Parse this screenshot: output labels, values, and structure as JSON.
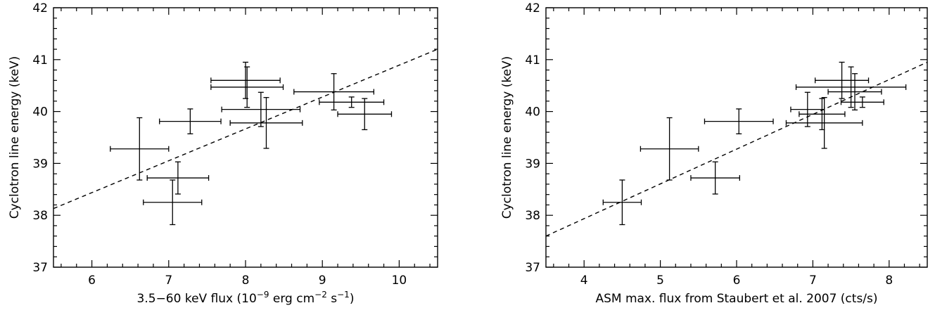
{
  "chart_data": [
    {
      "type": "scatter",
      "xlabel": "3.5−60 keV flux (10",
      "xlabel_exp1": "−9",
      "xlabel_mid": " erg cm",
      "xlabel_exp2": "−2",
      "xlabel_mid2": " s",
      "xlabel_exp3": "−1",
      "xlabel_end": ")",
      "ylabel": "Cyclotron line energy (keV)",
      "xlim": [
        5.5,
        10.5
      ],
      "ylim": [
        37,
        42
      ],
      "xticks": [
        6,
        7,
        8,
        9,
        10
      ],
      "xtick_labels": [
        "6",
        "7",
        "8",
        "9",
        "10"
      ],
      "yticks": [
        37,
        38,
        39,
        40,
        41,
        42
      ],
      "ytick_labels": [
        "37",
        "38",
        "39",
        "40",
        "41",
        "42"
      ],
      "points": [
        {
          "x": 6.62,
          "y": 39.28,
          "xerr": 0.38,
          "yerr": 0.6
        },
        {
          "x": 7.05,
          "y": 38.25,
          "xerr": 0.38,
          "yerr": 0.43
        },
        {
          "x": 7.12,
          "y": 38.72,
          "xerr": 0.4,
          "yerr": 0.31
        },
        {
          "x": 7.28,
          "y": 39.81,
          "xerr": 0.4,
          "yerr": 0.24
        },
        {
          "x": 8.0,
          "y": 40.6,
          "xerr": 0.45,
          "yerr": 0.35
        },
        {
          "x": 8.02,
          "y": 40.47,
          "xerr": 0.47,
          "yerr": 0.39
        },
        {
          "x": 8.2,
          "y": 40.04,
          "xerr": 0.51,
          "yerr": 0.33
        },
        {
          "x": 8.27,
          "y": 39.78,
          "xerr": 0.47,
          "yerr": 0.49
        },
        {
          "x": 9.15,
          "y": 40.38,
          "xerr": 0.52,
          "yerr": 0.35
        },
        {
          "x": 9.38,
          "y": 40.18,
          "xerr": 0.42,
          "yerr": 0.1
        },
        {
          "x": 9.55,
          "y": 39.95,
          "xerr": 0.35,
          "yerr": 0.3
        }
      ],
      "fit_line": {
        "x": [
          5.5,
          10.5
        ],
        "y": [
          38.13,
          41.2
        ]
      }
    },
    {
      "type": "scatter",
      "xlabel": "ASM max. flux from Staubert et al. 2007 (cts/s)",
      "ylabel": "Cyclotron line energy (keV)",
      "xlim": [
        3.5,
        8.5
      ],
      "ylim": [
        37,
        42
      ],
      "xticks": [
        4,
        5,
        6,
        7,
        8
      ],
      "xtick_labels": [
        "4",
        "5",
        "6",
        "7",
        "8"
      ],
      "yticks": [
        37,
        38,
        39,
        40,
        41,
        42
      ],
      "ytick_labels": [
        "37",
        "38",
        "39",
        "40",
        "41",
        "42"
      ],
      "points": [
        {
          "x": 4.5,
          "y": 38.25,
          "xerr": 0.25,
          "yerr": 0.43
        },
        {
          "x": 5.12,
          "y": 39.28,
          "xerr": 0.38,
          "yerr": 0.6
        },
        {
          "x": 5.72,
          "y": 38.72,
          "xerr": 0.32,
          "yerr": 0.31
        },
        {
          "x": 6.03,
          "y": 39.81,
          "xerr": 0.45,
          "yerr": 0.24
        },
        {
          "x": 6.93,
          "y": 40.04,
          "xerr": 0.22,
          "yerr": 0.33
        },
        {
          "x": 7.12,
          "y": 39.95,
          "xerr": 0.3,
          "yerr": 0.3
        },
        {
          "x": 7.15,
          "y": 39.78,
          "xerr": 0.5,
          "yerr": 0.49
        },
        {
          "x": 7.38,
          "y": 40.6,
          "xerr": 0.35,
          "yerr": 0.35
        },
        {
          "x": 7.5,
          "y": 40.47,
          "xerr": 0.72,
          "yerr": 0.39
        },
        {
          "x": 7.55,
          "y": 40.38,
          "xerr": 0.35,
          "yerr": 0.35
        },
        {
          "x": 7.65,
          "y": 40.18,
          "xerr": 0.28,
          "yerr": 0.1
        }
      ],
      "fit_line": {
        "x": [
          3.5,
          8.5
        ],
        "y": [
          37.6,
          40.95
        ]
      }
    }
  ]
}
